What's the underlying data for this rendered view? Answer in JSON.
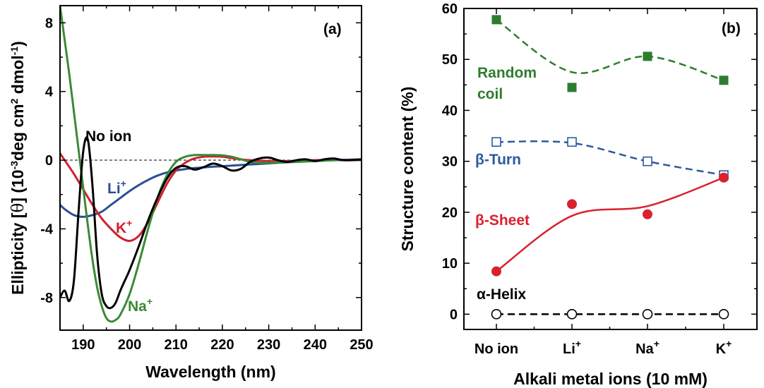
{
  "chart_data": [
    {
      "type": "line",
      "panel_label": "(a)",
      "xlabel": "Wavelength (nm)",
      "ylabel": "Ellipticity [θ] (10⁻³deg cm² dmol⁻¹)",
      "ylabel_parts": {
        "pre": "Ellipticity [",
        "theta": "θ",
        "mid1": "] (10",
        "sup1": "-3",
        "mid2": "deg cm",
        "sup2": "2",
        "mid3": " dmol",
        "sup3": "-1",
        "post": ")"
      },
      "xlim": [
        185,
        250
      ],
      "ylim": [
        -9.9,
        9.0
      ],
      "xticks": [
        190,
        200,
        210,
        220,
        230,
        240,
        250
      ],
      "yticks": [
        -8,
        -4,
        0,
        4,
        8
      ],
      "tick_labels_x": [
        "190",
        "200",
        "210",
        "220",
        "230",
        "240",
        "250"
      ],
      "tick_labels_y": [
        "-8",
        "-4",
        "0",
        "4",
        "8"
      ],
      "grid": false,
      "zero_line": true,
      "series": [
        {
          "name": "No ion",
          "label_base": "No ion",
          "label_sup": "",
          "color": "#000000",
          "x": [
            185,
            186,
            187,
            188,
            189,
            190,
            191,
            192,
            193,
            194,
            195,
            196,
            197,
            198,
            199,
            200,
            202,
            204,
            206,
            208,
            210,
            212,
            214,
            216,
            218,
            220,
            222,
            224,
            226,
            228,
            230,
            232,
            234,
            236,
            238,
            240,
            242,
            244,
            246,
            248,
            250
          ],
          "y": [
            -8.0,
            -7.6,
            -8.2,
            -7.0,
            -3.0,
            0.5,
            1.2,
            -1.5,
            -5.5,
            -7.8,
            -8.5,
            -8.6,
            -8.3,
            -7.6,
            -7.0,
            -6.4,
            -5.0,
            -3.5,
            -2.2,
            -1.1,
            -0.45,
            -0.35,
            -0.55,
            -0.4,
            -0.2,
            -0.35,
            -0.6,
            -0.5,
            -0.1,
            0.1,
            0.15,
            0.0,
            -0.1,
            0.0,
            0.05,
            -0.05,
            0.05,
            0.1,
            0.0,
            0.0,
            0.05
          ]
        },
        {
          "name": "Li+",
          "label_base": "Li",
          "label_sup": "+",
          "color": "#2b4f94",
          "x": [
            185,
            186,
            188,
            190,
            192,
            194,
            196,
            198,
            200,
            202,
            204,
            206,
            208,
            210,
            212,
            214,
            216,
            218,
            220,
            224,
            228,
            232,
            236,
            240,
            244,
            250
          ],
          "y": [
            -2.6,
            -2.85,
            -3.2,
            -3.3,
            -3.2,
            -3.0,
            -2.6,
            -2.2,
            -1.8,
            -1.45,
            -1.15,
            -0.9,
            -0.72,
            -0.6,
            -0.52,
            -0.46,
            -0.42,
            -0.38,
            -0.35,
            -0.28,
            -0.22,
            -0.15,
            -0.1,
            -0.05,
            0.0,
            0.05
          ]
        },
        {
          "name": "K+",
          "label_base": "K",
          "label_sup": "+",
          "color": "#d1202f",
          "x": [
            185,
            186,
            188,
            190,
            192,
            194,
            196,
            198,
            200,
            202,
            204,
            206,
            208,
            210,
            212,
            214,
            216,
            218,
            220,
            222,
            224,
            226,
            230,
            235,
            240,
            245,
            250
          ],
          "y": [
            0.4,
            0.0,
            -0.8,
            -1.7,
            -2.6,
            -3.4,
            -4.0,
            -4.5,
            -4.7,
            -4.4,
            -3.6,
            -2.5,
            -1.4,
            -0.6,
            -0.15,
            0.1,
            0.2,
            0.22,
            0.2,
            0.12,
            0.05,
            0.0,
            -0.05,
            -0.05,
            0.0,
            0.0,
            0.0
          ]
        },
        {
          "name": "Na+",
          "label_base": "Na",
          "label_sup": "+",
          "color": "#3a8a35",
          "x": [
            185,
            186,
            187,
            188,
            189,
            190,
            191,
            192,
            193,
            194,
            195,
            196,
            197,
            198,
            200,
            202,
            204,
            206,
            208,
            210,
            212,
            214,
            216,
            218,
            220,
            222,
            224,
            226,
            228,
            230,
            235,
            240,
            245,
            250
          ],
          "y": [
            9.0,
            7.0,
            5.0,
            2.8,
            0.6,
            -1.6,
            -3.8,
            -5.8,
            -7.4,
            -8.5,
            -9.2,
            -9.4,
            -9.3,
            -9.0,
            -7.8,
            -6.0,
            -4.0,
            -2.2,
            -0.9,
            -0.1,
            0.2,
            0.3,
            0.3,
            0.3,
            0.28,
            0.2,
            0.05,
            -0.1,
            -0.15,
            -0.15,
            -0.1,
            -0.05,
            0.0,
            0.0
          ]
        }
      ]
    },
    {
      "type": "scatter",
      "panel_label": "(b)",
      "xlabel": "Alkali metal ions (10 mM)",
      "ylabel": "Structure content (%)",
      "categories": [
        "No ion",
        "Li+",
        "Na+",
        "K+"
      ],
      "category_labels": [
        {
          "base": "No ion",
          "sup": ""
        },
        {
          "base": "Li",
          "sup": "+"
        },
        {
          "base": "Na",
          "sup": "+"
        },
        {
          "base": "K",
          "sup": "+"
        }
      ],
      "ylim": [
        -3,
        60
      ],
      "yticks": [
        0,
        10,
        20,
        30,
        40,
        50,
        60
      ],
      "tick_labels_y": [
        "0",
        "10",
        "20",
        "30",
        "40",
        "50",
        "60"
      ],
      "grid": false,
      "series": [
        {
          "name": "Random coil",
          "label_lines": [
            "Random",
            "coil"
          ],
          "color": "#2e7d2e",
          "marker": "filled-square",
          "line_style": "dashed",
          "values": [
            57.8,
            44.5,
            50.6,
            45.9
          ],
          "fit_curve": [
            57.8,
            47.5,
            50.6,
            45.9
          ]
        },
        {
          "name": "β-Turn",
          "label_lines": [
            "β-Turn"
          ],
          "color": "#2b5aa0",
          "marker": "open-square",
          "line_style": "dashed",
          "values": [
            33.8,
            33.8,
            30.0,
            27.3
          ],
          "fit_curve": [
            33.8,
            33.6,
            30.0,
            27.3
          ]
        },
        {
          "name": "β-Sheet",
          "label_lines": [
            "β-Sheet"
          ],
          "color": "#d9222e",
          "marker": "filled-circle",
          "line_style": "solid",
          "values": [
            8.4,
            21.6,
            19.6,
            26.8
          ],
          "fit_curve": [
            8.4,
            19.3,
            21.2,
            26.8
          ]
        },
        {
          "name": "α-Helix",
          "label_lines": [
            "α-Helix"
          ],
          "color": "#000000",
          "marker": "open-circle",
          "line_style": "dashed",
          "values": [
            0,
            0,
            0,
            0
          ],
          "fit_curve": [
            0,
            0,
            0,
            0
          ]
        }
      ]
    }
  ]
}
